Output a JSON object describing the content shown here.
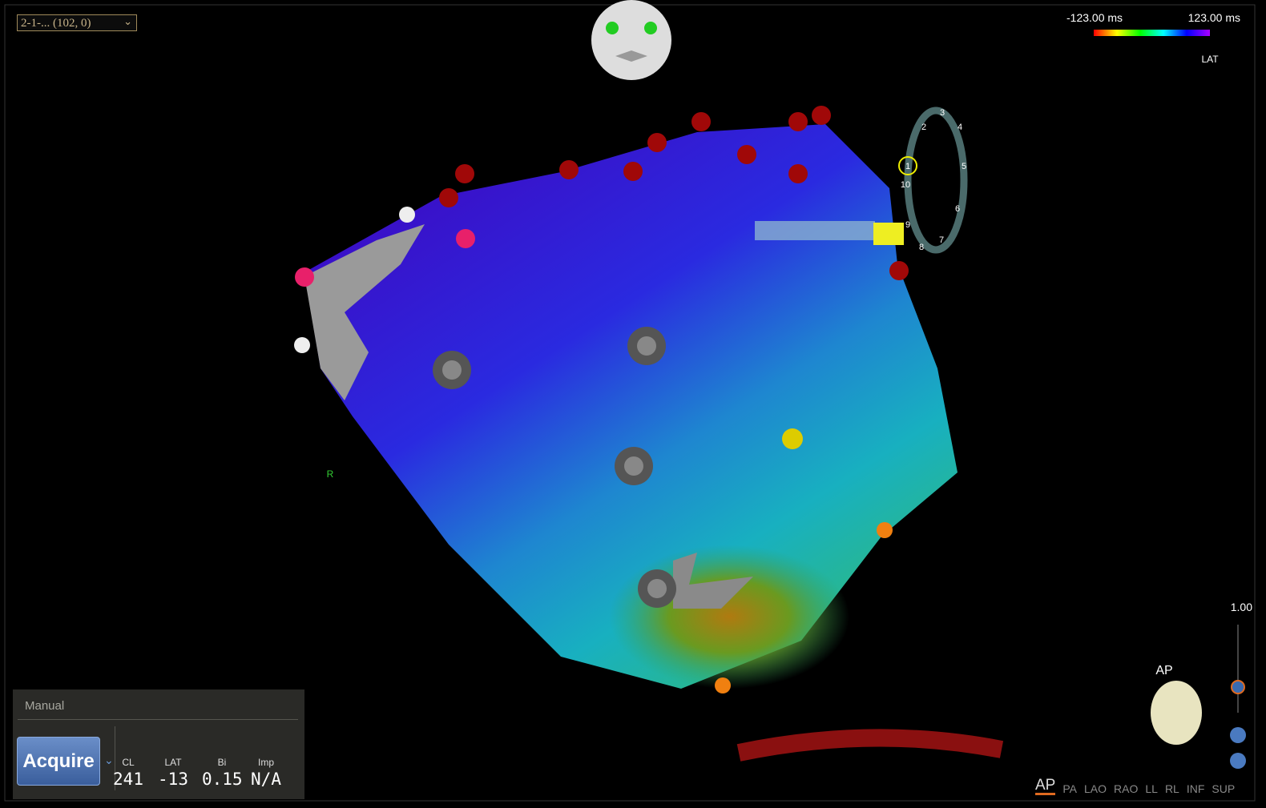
{
  "dropdown": "2-1-... (102, 0)",
  "color_scale": {
    "min_label": "-123.00 ms",
    "max_label": "123.00 ms",
    "mode": "LAT"
  },
  "catheter_labels": [
    "1",
    "2",
    "3",
    "4",
    "5",
    "6",
    "7",
    "8",
    "9",
    "10"
  ],
  "marker_label": "R",
  "zoom": "1.00",
  "orientation": "AP",
  "views": [
    "AP",
    "PA",
    "LAO",
    "RAO",
    "LL",
    "RL",
    "INF",
    "SUP"
  ],
  "panel": {
    "title": "Manual",
    "button": "Acquire",
    "fields": [
      {
        "label": "CL",
        "value": "241"
      },
      {
        "label": "LAT",
        "value": "-13"
      },
      {
        "label": "Bi",
        "value": "0.15"
      },
      {
        "label": "Imp",
        "value": "N/A"
      }
    ]
  }
}
